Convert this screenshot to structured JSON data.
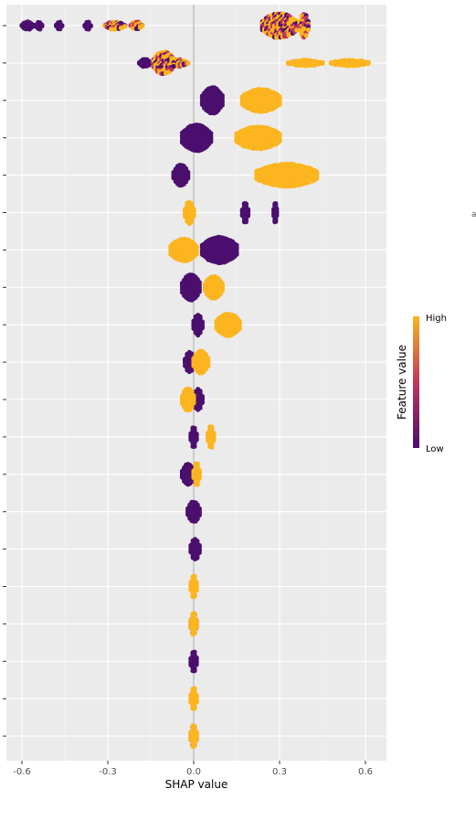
{
  "chart_data": {
    "type": "scatter",
    "subtype": "shap-beeswarm",
    "title": "",
    "xlabel": "SHAP value",
    "ylabel": "",
    "xlim": [
      -0.64,
      0.67
    ],
    "x_ticks": [
      -0.6,
      -0.3,
      0.0,
      0.3,
      0.6
    ],
    "x_tick_labels": [
      "-0.6",
      "-0.3",
      "0.0",
      "0.3",
      "0.6"
    ],
    "zero_line": 0.0,
    "grid": true,
    "legend": {
      "title": "Feature value",
      "high_label": "High",
      "low_label": "Low",
      "placement": "right"
    },
    "colors": {
      "low": "#4b0f6e",
      "mid": "#c0365c",
      "high": "#fcb51f",
      "panel": "#ebebeb",
      "grid": "#ffffff"
    },
    "features": [
      {
        "index": 1,
        "low": [
          [
            -0.6,
            -0.56
          ],
          [
            -0.55,
            -0.53
          ],
          [
            -0.48,
            -0.46
          ],
          [
            -0.38,
            -0.36
          ],
          [
            -0.31,
            -0.24
          ],
          [
            -0.22,
            -0.18
          ]
        ],
        "high": [
          [
            0.24,
            0.36
          ],
          [
            0.37,
            0.4
          ]
        ]
      },
      {
        "index": 2,
        "low": [
          [
            -0.19,
            -0.15
          ],
          [
            -0.11,
            -0.02
          ]
        ],
        "high": [
          [
            -0.14,
            -0.07
          ],
          [
            0.33,
            0.45
          ],
          [
            0.48,
            0.61
          ]
        ]
      },
      {
        "index": 3,
        "low": [
          [
            0.03,
            0.1
          ]
        ],
        "high": [
          [
            0.17,
            0.3
          ]
        ]
      },
      {
        "index": 4,
        "low": [
          [
            -0.04,
            0.06
          ]
        ],
        "high": [
          [
            0.15,
            0.3
          ]
        ]
      },
      {
        "index": 5,
        "low": [
          [
            -0.07,
            -0.02
          ]
        ],
        "high": [
          [
            0.22,
            0.43
          ]
        ]
      },
      {
        "index": 6,
        "low": [
          [
            0.17,
            0.19
          ],
          [
            0.28,
            0.29
          ]
        ],
        "high": [
          [
            -0.03,
            0.0
          ]
        ]
      },
      {
        "index": 7,
        "low": [
          [
            0.03,
            0.15
          ]
        ],
        "high": [
          [
            -0.08,
            0.01
          ]
        ]
      },
      {
        "index": 8,
        "low": [
          [
            -0.04,
            0.02
          ]
        ],
        "high": [
          [
            0.04,
            0.1
          ]
        ]
      },
      {
        "index": 9,
        "low": [
          [
            0.0,
            0.03
          ]
        ],
        "high": [
          [
            0.08,
            0.16
          ]
        ]
      },
      {
        "index": 10,
        "low": [
          [
            -0.03,
            0.0
          ]
        ],
        "high": [
          [
            0.0,
            0.05
          ]
        ]
      },
      {
        "index": 11,
        "low": [
          [
            0.0,
            0.03
          ]
        ],
        "high": [
          [
            -0.04,
            0.0
          ]
        ]
      },
      {
        "index": 12,
        "low": [
          [
            -0.01,
            0.01
          ]
        ],
        "high": [
          [
            0.05,
            0.07
          ]
        ]
      },
      {
        "index": 13,
        "low": [
          [
            -0.04,
            0.0
          ]
        ],
        "high": [
          [
            0.0,
            0.02
          ]
        ]
      },
      {
        "index": 14,
        "low": [
          [
            -0.02,
            0.02
          ]
        ],
        "high": []
      },
      {
        "index": 15,
        "low": [
          [
            -0.01,
            0.02
          ]
        ],
        "high": []
      },
      {
        "index": 16,
        "low": [],
        "high": [
          [
            -0.01,
            0.01
          ]
        ]
      },
      {
        "index": 17,
        "low": [
          [
            -0.01,
            0.01
          ]
        ],
        "high": [
          [
            -0.01,
            0.01
          ]
        ]
      },
      {
        "index": 18,
        "low": [
          [
            -0.01,
            0.01
          ]
        ],
        "high": []
      },
      {
        "index": 19,
        "low": [],
        "high": [
          [
            -0.01,
            0.01
          ]
        ]
      },
      {
        "index": 20,
        "low": [
          [
            -0.01,
            0.01
          ]
        ],
        "high": [
          [
            -0.01,
            0.01
          ]
        ]
      }
    ]
  },
  "stray_text": "a"
}
